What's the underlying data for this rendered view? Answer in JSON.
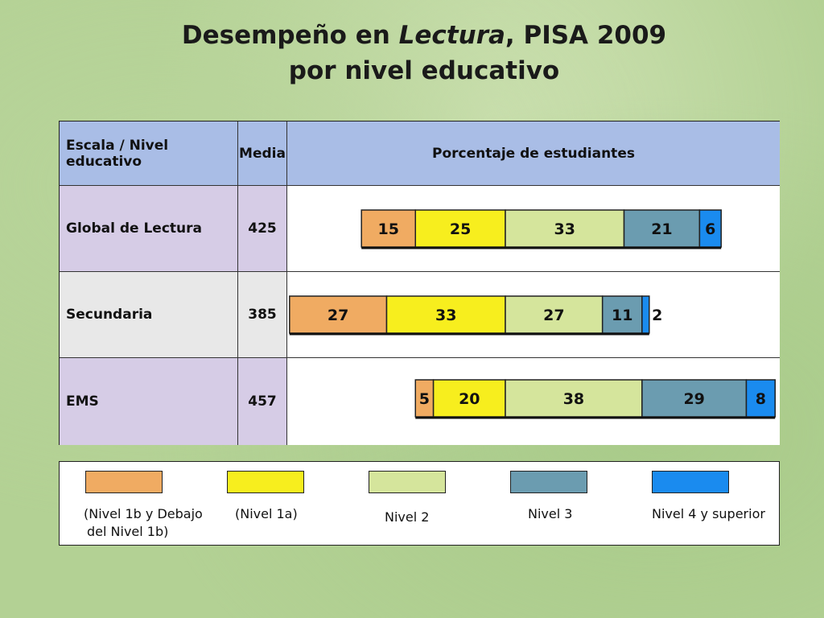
{
  "title": {
    "prefix": "Desempeño en ",
    "italic": "Lectura",
    "suffix": ", PISA 2009",
    "line2": "por nivel educativo"
  },
  "table": {
    "col_headers": [
      "Escala / Nivel educativo",
      "Media",
      "Porcentaje de estudiantes"
    ],
    "rows": [
      {
        "label": "Global de Lectura",
        "media": "425"
      },
      {
        "label": "Secundaria",
        "media": "385"
      },
      {
        "label": "EMS",
        "media": "457"
      }
    ]
  },
  "colors": {
    "level_1b": "#f0ab62",
    "level_1a": "#f7ee1e",
    "level_2": "#d5e59c",
    "level_3": "#6b9cb0",
    "level_4": "#1a8bef"
  },
  "legend": [
    {
      "label": "(Nivel 1b y Debajo",
      "label2": "del Nivel 1b)"
    },
    {
      "label": "(Nivel 1a)"
    },
    {
      "label": "Nivel 2"
    },
    {
      "label": "Nivel 3"
    },
    {
      "label": "Nivel 4 y superior"
    }
  ],
  "chart_data": {
    "type": "bar",
    "stacked": true,
    "orientation": "horizontal",
    "title": "Desempeño en Lectura, PISA 2009 por nivel educativo",
    "categories": [
      "Global de Lectura",
      "Secundaria",
      "EMS"
    ],
    "series": [
      {
        "name": "(Nivel 1b y Debajo del Nivel 1b)",
        "values": [
          15,
          27,
          5
        ]
      },
      {
        "name": "(Nivel 1a)",
        "values": [
          25,
          33,
          20
        ]
      },
      {
        "name": "Nivel 2",
        "values": [
          33,
          27,
          38
        ]
      },
      {
        "name": "Nivel 3",
        "values": [
          21,
          11,
          29
        ]
      },
      {
        "name": "Nivel 4 y superior",
        "values": [
          6,
          2,
          8
        ]
      }
    ],
    "anchor_note": "bars are aligned at the boundary between Nivel 1a and Nivel 2"
  }
}
